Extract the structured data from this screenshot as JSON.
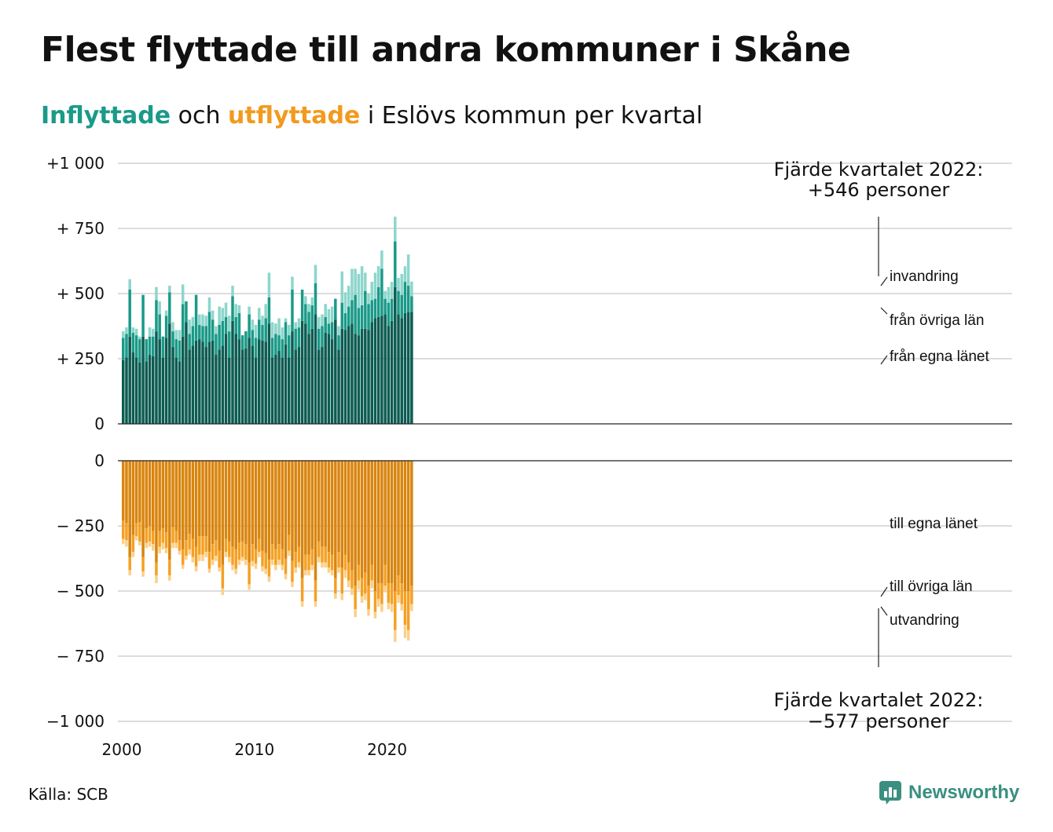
{
  "title": "Flest flyttade till andra kommuner i Skåne",
  "subtitle": {
    "in_word": "Inflyttade",
    "and": "och",
    "out_word": "utflyttade",
    "rest": "i Eslövs kommun per kvartal"
  },
  "source": "Källa: SCB",
  "brand": "Newsworthy",
  "colors": {
    "in_own": "#0d5c52",
    "in_other": "#1a9a88",
    "in_immigration": "#8dd6cc",
    "out_own": "#d9850f",
    "out_other": "#f5a023",
    "out_emigration": "#fbd08a",
    "grid": "#dddddd",
    "axis": "#222222",
    "in_word": "#1a9a88",
    "out_word": "#f29a1e"
  },
  "chart_data": {
    "type": "bar",
    "subtype": "stacked, diverging (inflow above, outflow below)",
    "first_period": "2000 Q1",
    "last_period": "2022 Q4",
    "x_ticks": [
      "2000",
      "2010",
      "2020"
    ],
    "y_ticks_in": [
      "+1 000",
      "+  750",
      "+  500",
      "+  250",
      "0"
    ],
    "y_ticks_out": [
      "0",
      "−  250",
      "−  500",
      "−  750",
      "−1 000"
    ],
    "ylim_in": [
      0,
      1000
    ],
    "ylim_out": [
      -1000,
      0
    ],
    "grid": true,
    "annotation_in": {
      "line1": "Fjärde kvartalet 2022:",
      "line2": "+546 personer"
    },
    "annotation_out": {
      "line1": "Fjärde kvartalet 2022:",
      "line2": "−577 personer"
    },
    "series_labels_in": [
      "invandring",
      "från övriga län",
      "från egna länet"
    ],
    "series_labels_out": [
      "till egna länet",
      "till övriga län",
      "utvandring"
    ],
    "in_own": [
      245,
      255,
      335,
      275,
      255,
      235,
      335,
      240,
      265,
      260,
      355,
      325,
      255,
      330,
      385,
      295,
      255,
      240,
      335,
      390,
      285,
      300,
      320,
      325,
      315,
      295,
      315,
      320,
      265,
      285,
      300,
      345,
      255,
      395,
      345,
      325,
      285,
      290,
      330,
      300,
      255,
      325,
      320,
      315,
      385,
      255,
      265,
      280,
      255,
      305,
      255,
      355,
      285,
      295,
      395,
      385,
      345,
      365,
      420,
      285,
      295,
      350,
      345,
      325,
      400,
      285,
      365,
      360,
      375,
      385,
      345,
      340,
      365,
      365,
      360,
      390,
      405,
      410,
      415,
      420,
      375,
      395,
      525,
      420,
      405,
      425,
      430,
      430
    ],
    "in_other": [
      85,
      90,
      180,
      75,
      85,
      90,
      160,
      85,
      70,
      75,
      120,
      95,
      80,
      85,
      120,
      60,
      70,
      80,
      125,
      80,
      60,
      75,
      175,
      55,
      60,
      80,
      115,
      80,
      80,
      95,
      95,
      65,
      100,
      95,
      65,
      100,
      55,
      65,
      90,
      60,
      75,
      75,
      60,
      90,
      100,
      75,
      80,
      60,
      70,
      85,
      85,
      160,
      80,
      75,
      120,
      75,
      85,
      90,
      120,
      80,
      80,
      60,
      40,
      65,
      80,
      55,
      100,
      65,
      75,
      90,
      150,
      105,
      90,
      145,
      100,
      85,
      75,
      115,
      180,
      60,
      90,
      85,
      175,
      90,
      90,
      120,
      100,
      60
    ],
    "in_immigration": [
      25,
      25,
      40,
      20,
      25,
      10,
      0,
      0,
      35,
      30,
      50,
      50,
      0,
      20,
      25,
      35,
      35,
      40,
      75,
      0,
      55,
      35,
      0,
      40,
      45,
      40,
      55,
      35,
      30,
      70,
      50,
      55,
      60,
      40,
      50,
      30,
      0,
      0,
      30,
      40,
      50,
      45,
      35,
      55,
      95,
      60,
      40,
      65,
      45,
      15,
      40,
      50,
      25,
      35,
      0,
      30,
      30,
      30,
      70,
      45,
      45,
      50,
      55,
      60,
      0,
      35,
      120,
      80,
      80,
      120,
      100,
      130,
      150,
      70,
      40,
      70,
      100,
      80,
      70,
      30,
      60,
      65,
      95,
      50,
      80,
      60,
      120,
      56
    ],
    "out_own": [
      230,
      240,
      370,
      285,
      240,
      235,
      370,
      260,
      250,
      270,
      390,
      270,
      260,
      275,
      380,
      255,
      270,
      305,
      340,
      305,
      280,
      300,
      330,
      290,
      290,
      290,
      350,
      320,
      305,
      345,
      400,
      300,
      310,
      330,
      340,
      315,
      310,
      320,
      390,
      320,
      340,
      300,
      345,
      355,
      380,
      320,
      340,
      320,
      340,
      375,
      285,
      385,
      350,
      330,
      450,
      360,
      360,
      340,
      460,
      310,
      330,
      330,
      350,
      360,
      450,
      350,
      410,
      360,
      390,
      420,
      480,
      400,
      450,
      430,
      480,
      400,
      500,
      470,
      470,
      400,
      470,
      470,
      500,
      440,
      470,
      500,
      500,
      480
    ],
    "out_other": [
      70,
      65,
      50,
      65,
      50,
      75,
      55,
      55,
      60,
      50,
      50,
      60,
      55,
      60,
      60,
      60,
      45,
      40,
      60,
      60,
      60,
      70,
      75,
      70,
      70,
      60,
      65,
      60,
      60,
      65,
      90,
      50,
      60,
      70,
      75,
      65,
      60,
      60,
      85,
      65,
      55,
      50,
      60,
      60,
      65,
      60,
      60,
      60,
      60,
      60,
      60,
      80,
      60,
      60,
      90,
      60,
      60,
      60,
      80,
      60,
      60,
      60,
      60,
      60,
      60,
      60,
      100,
      60,
      70,
      70,
      90,
      60,
      70,
      80,
      90,
      60,
      80,
      60,
      80,
      80,
      75,
      80,
      150,
      75,
      80,
      130,
      150,
      70
    ],
    "out_emigration": [
      20,
      25,
      20,
      20,
      15,
      15,
      20,
      20,
      20,
      25,
      30,
      25,
      25,
      20,
      20,
      20,
      20,
      15,
      15,
      15,
      20,
      20,
      20,
      25,
      25,
      20,
      15,
      20,
      20,
      15,
      25,
      20,
      20,
      20,
      20,
      20,
      15,
      20,
      20,
      20,
      20,
      20,
      20,
      20,
      20,
      20,
      20,
      20,
      20,
      20,
      20,
      20,
      20,
      20,
      20,
      20,
      20,
      20,
      20,
      20,
      20,
      20,
      20,
      20,
      20,
      20,
      25,
      30,
      25,
      25,
      30,
      35,
      25,
      25,
      25,
      30,
      25,
      30,
      30,
      25,
      25,
      30,
      45,
      30,
      25,
      50,
      40,
      27
    ]
  }
}
